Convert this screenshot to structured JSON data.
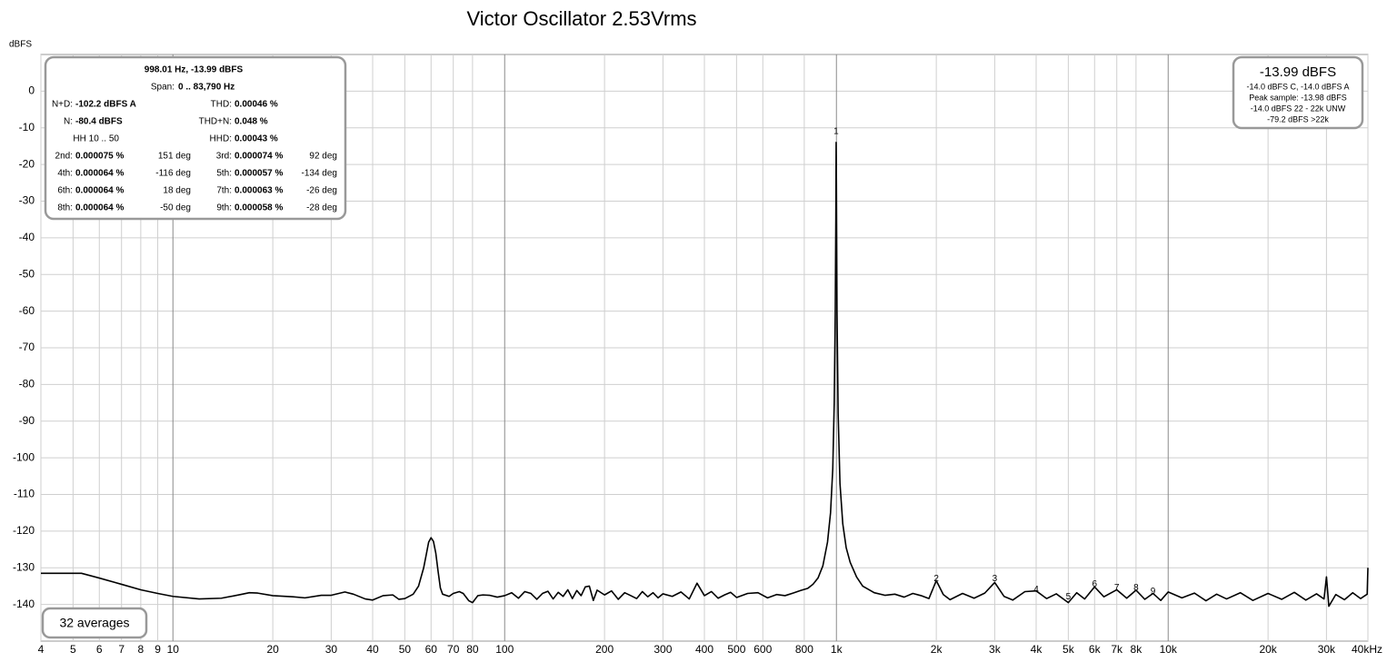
{
  "chart_data": {
    "type": "line",
    "title": "Victor Oscillator 2.53Vrms",
    "y_label": "dBFS",
    "log_x": true,
    "grid": true,
    "color": "#000000",
    "xlim": [
      4,
      40000
    ],
    "ylim": [
      -150,
      10
    ],
    "xticks": [
      4,
      5,
      6,
      7,
      8,
      9,
      10,
      20,
      30,
      40,
      50,
      60,
      70,
      80,
      100,
      200,
      300,
      400,
      500,
      600,
      800,
      {
        "value": 1000,
        "label": "1k"
      },
      {
        "value": 2000,
        "label": "2k"
      },
      {
        "value": 3000,
        "label": "3k"
      },
      {
        "value": 4000,
        "label": "4k"
      },
      {
        "value": 5000,
        "label": "5k"
      },
      {
        "value": 6000,
        "label": "6k"
      },
      {
        "value": 7000,
        "label": "7k"
      },
      {
        "value": 8000,
        "label": "8k"
      },
      {
        "value": 10000,
        "label": "10k"
      },
      {
        "value": 20000,
        "label": "20k"
      },
      {
        "value": 30000,
        "label": "30k"
      },
      {
        "value": 40000,
        "label": "40kHz"
      }
    ],
    "yticks": [
      0,
      -10,
      -20,
      -30,
      -40,
      -50,
      -60,
      -70,
      -80,
      -90,
      -100,
      -110,
      -120,
      -130,
      -140
    ],
    "x": [
      4,
      5,
      5.3,
      6,
      7,
      8,
      9,
      10,
      12,
      14,
      16,
      17,
      18,
      20,
      23,
      25,
      28,
      30,
      33,
      35,
      38,
      40,
      43,
      46,
      48,
      50,
      53,
      55,
      57,
      58,
      59,
      60,
      61,
      62,
      63,
      64,
      65,
      68,
      70,
      73,
      75,
      78,
      80,
      83,
      86,
      90,
      95,
      100,
      105,
      110,
      115,
      120,
      125,
      130,
      135,
      140,
      145,
      150,
      155,
      160,
      165,
      170,
      175,
      180,
      185,
      190,
      200,
      210,
      220,
      230,
      240,
      250,
      260,
      270,
      280,
      290,
      300,
      320,
      340,
      360,
      380,
      400,
      420,
      440,
      460,
      480,
      500,
      540,
      580,
      620,
      660,
      700,
      740,
      780,
      820,
      850,
      880,
      910,
      940,
      960,
      975,
      985,
      992,
      996,
      998,
      1000,
      1004,
      1012,
      1025,
      1045,
      1070,
      1100,
      1150,
      1200,
      1300,
      1400,
      1500,
      1600,
      1700,
      1800,
      1900,
      2000,
      2100,
      2200,
      2400,
      2600,
      2800,
      3000,
      3200,
      3400,
      3700,
      4000,
      4300,
      4600,
      5000,
      5300,
      5600,
      6000,
      6400,
      7000,
      7500,
      8000,
      8500,
      9000,
      9500,
      10000,
      11000,
      12000,
      13000,
      14000,
      15000,
      16500,
      18000,
      20000,
      22000,
      24000,
      26000,
      28000,
      29500,
      30000,
      30500,
      32000,
      34000,
      36000,
      38000,
      39800,
      40000
    ],
    "values": [
      -131.5,
      -131.5,
      -131.5,
      -132.8,
      -134.5,
      -136,
      -137,
      -137.8,
      -138.5,
      -138.3,
      -137.3,
      -136.8,
      -136.9,
      -137.6,
      -137.9,
      -138.2,
      -137.5,
      -137.5,
      -136.6,
      -137.2,
      -138.5,
      -138.8,
      -137.6,
      -137.4,
      -138.6,
      -138.4,
      -137.2,
      -135,
      -130,
      -126.5,
      -123,
      -121.8,
      -122.8,
      -126,
      -131,
      -135.5,
      -137.2,
      -137.8,
      -137,
      -136.5,
      -137,
      -139,
      -139.5,
      -137.6,
      -137.4,
      -137.5,
      -138,
      -137.6,
      -136.8,
      -138.3,
      -136.5,
      -137,
      -138.6,
      -137,
      -136.4,
      -138.5,
      -136.7,
      -137.8,
      -136,
      -138.4,
      -136.2,
      -137.6,
      -135.2,
      -135,
      -138.9,
      -136.1,
      -137.4,
      -136.3,
      -138.6,
      -136.8,
      -137.6,
      -138.4,
      -136.5,
      -137.9,
      -136.8,
      -138.2,
      -137.1,
      -137.8,
      -136.6,
      -138.5,
      -134.2,
      -137.6,
      -136.5,
      -138.3,
      -137.4,
      -136.7,
      -138.1,
      -137,
      -136.8,
      -138.2,
      -137.3,
      -137.6,
      -136.9,
      -136.2,
      -135.6,
      -134.5,
      -132.8,
      -129.5,
      -123,
      -115,
      -103,
      -85,
      -60,
      -35,
      -13.99,
      -25,
      -60,
      -88,
      -107,
      -118,
      -124.5,
      -128.5,
      -132.5,
      -135,
      -136.8,
      -137.5,
      -137.2,
      -138,
      -137,
      -137.6,
      -138.4,
      -133.5,
      -137.3,
      -138.7,
      -137,
      -138.3,
      -136.9,
      -134,
      -137.8,
      -138.8,
      -136.5,
      -136.3,
      -138.4,
      -137.1,
      -139.5,
      -136.8,
      -138.5,
      -135.2,
      -137.9,
      -136,
      -138.3,
      -136.1,
      -138.6,
      -137,
      -138.9,
      -136.6,
      -138.2,
      -136.9,
      -139,
      -137.2,
      -138.5,
      -136.8,
      -138.9,
      -137,
      -138.6,
      -136.7,
      -138.8,
      -137.1,
      -138.5,
      -132.5,
      -140.5,
      -137.3,
      -138.7,
      -136.8,
      -138.4,
      -137.2,
      -130
    ],
    "harmonic_markers": [
      {
        "label": "1",
        "x": 998,
        "y": -11
      },
      {
        "label": "2",
        "x": 2000,
        "y": -133
      },
      {
        "label": "3",
        "x": 3000,
        "y": -133
      },
      {
        "label": "4",
        "x": 4000,
        "y": -136
      },
      {
        "label": "5",
        "x": 5000,
        "y": -138
      },
      {
        "label": "6",
        "x": 6000,
        "y": -134.5
      },
      {
        "label": "7",
        "x": 7000,
        "y": -135.5
      },
      {
        "label": "8",
        "x": 8000,
        "y": -135.5
      },
      {
        "label": "9",
        "x": 9000,
        "y": -136.5
      }
    ],
    "info_panel": {
      "header": "998.01 Hz, -13.99 dBFS",
      "span_label": "Span:",
      "span_value": "0 .. 83,790 Hz",
      "rows": [
        [
          {
            "label": "N+D:",
            "value": "-102.2 dBFS A"
          },
          {
            "label": "THD:",
            "value": "0.00046 %"
          }
        ],
        [
          {
            "label": "N:",
            "value": "-80.4 dBFS"
          },
          {
            "label": "THD+N:",
            "value": "0.048 %"
          }
        ],
        [
          {
            "label": "HH 10 .. 50"
          },
          {
            "label": "HHD:",
            "value": "0.00043 %"
          }
        ],
        [
          {
            "label": "2nd:",
            "value": "0.000075 %",
            "phase": "151 deg"
          },
          {
            "label": "3rd:",
            "value": "0.000074 %",
            "phase": "92 deg"
          }
        ],
        [
          {
            "label": "4th:",
            "value": "0.000064 %",
            "phase": "-116 deg"
          },
          {
            "label": "5th:",
            "value": "0.000057 %",
            "phase": "-134 deg"
          }
        ],
        [
          {
            "label": "6th:",
            "value": "0.000064 %",
            "phase": "18 deg"
          },
          {
            "label": "7th:",
            "value": "0.000063 %",
            "phase": "-26 deg"
          }
        ],
        [
          {
            "label": "8th:",
            "value": "0.000064 %",
            "phase": "-50 deg"
          },
          {
            "label": "9th:",
            "value": "0.000058 %",
            "phase": "-28 deg"
          }
        ]
      ]
    },
    "level_panel": {
      "main": "-13.99 dBFS",
      "lines": [
        "-14.0 dBFS C, -14.0 dBFS A",
        "Peak sample: -13.98 dBFS",
        "-14.0 dBFS 22 - 22k UNW",
        "-79.2 dBFS >22k"
      ]
    },
    "averages": "32 averages"
  }
}
